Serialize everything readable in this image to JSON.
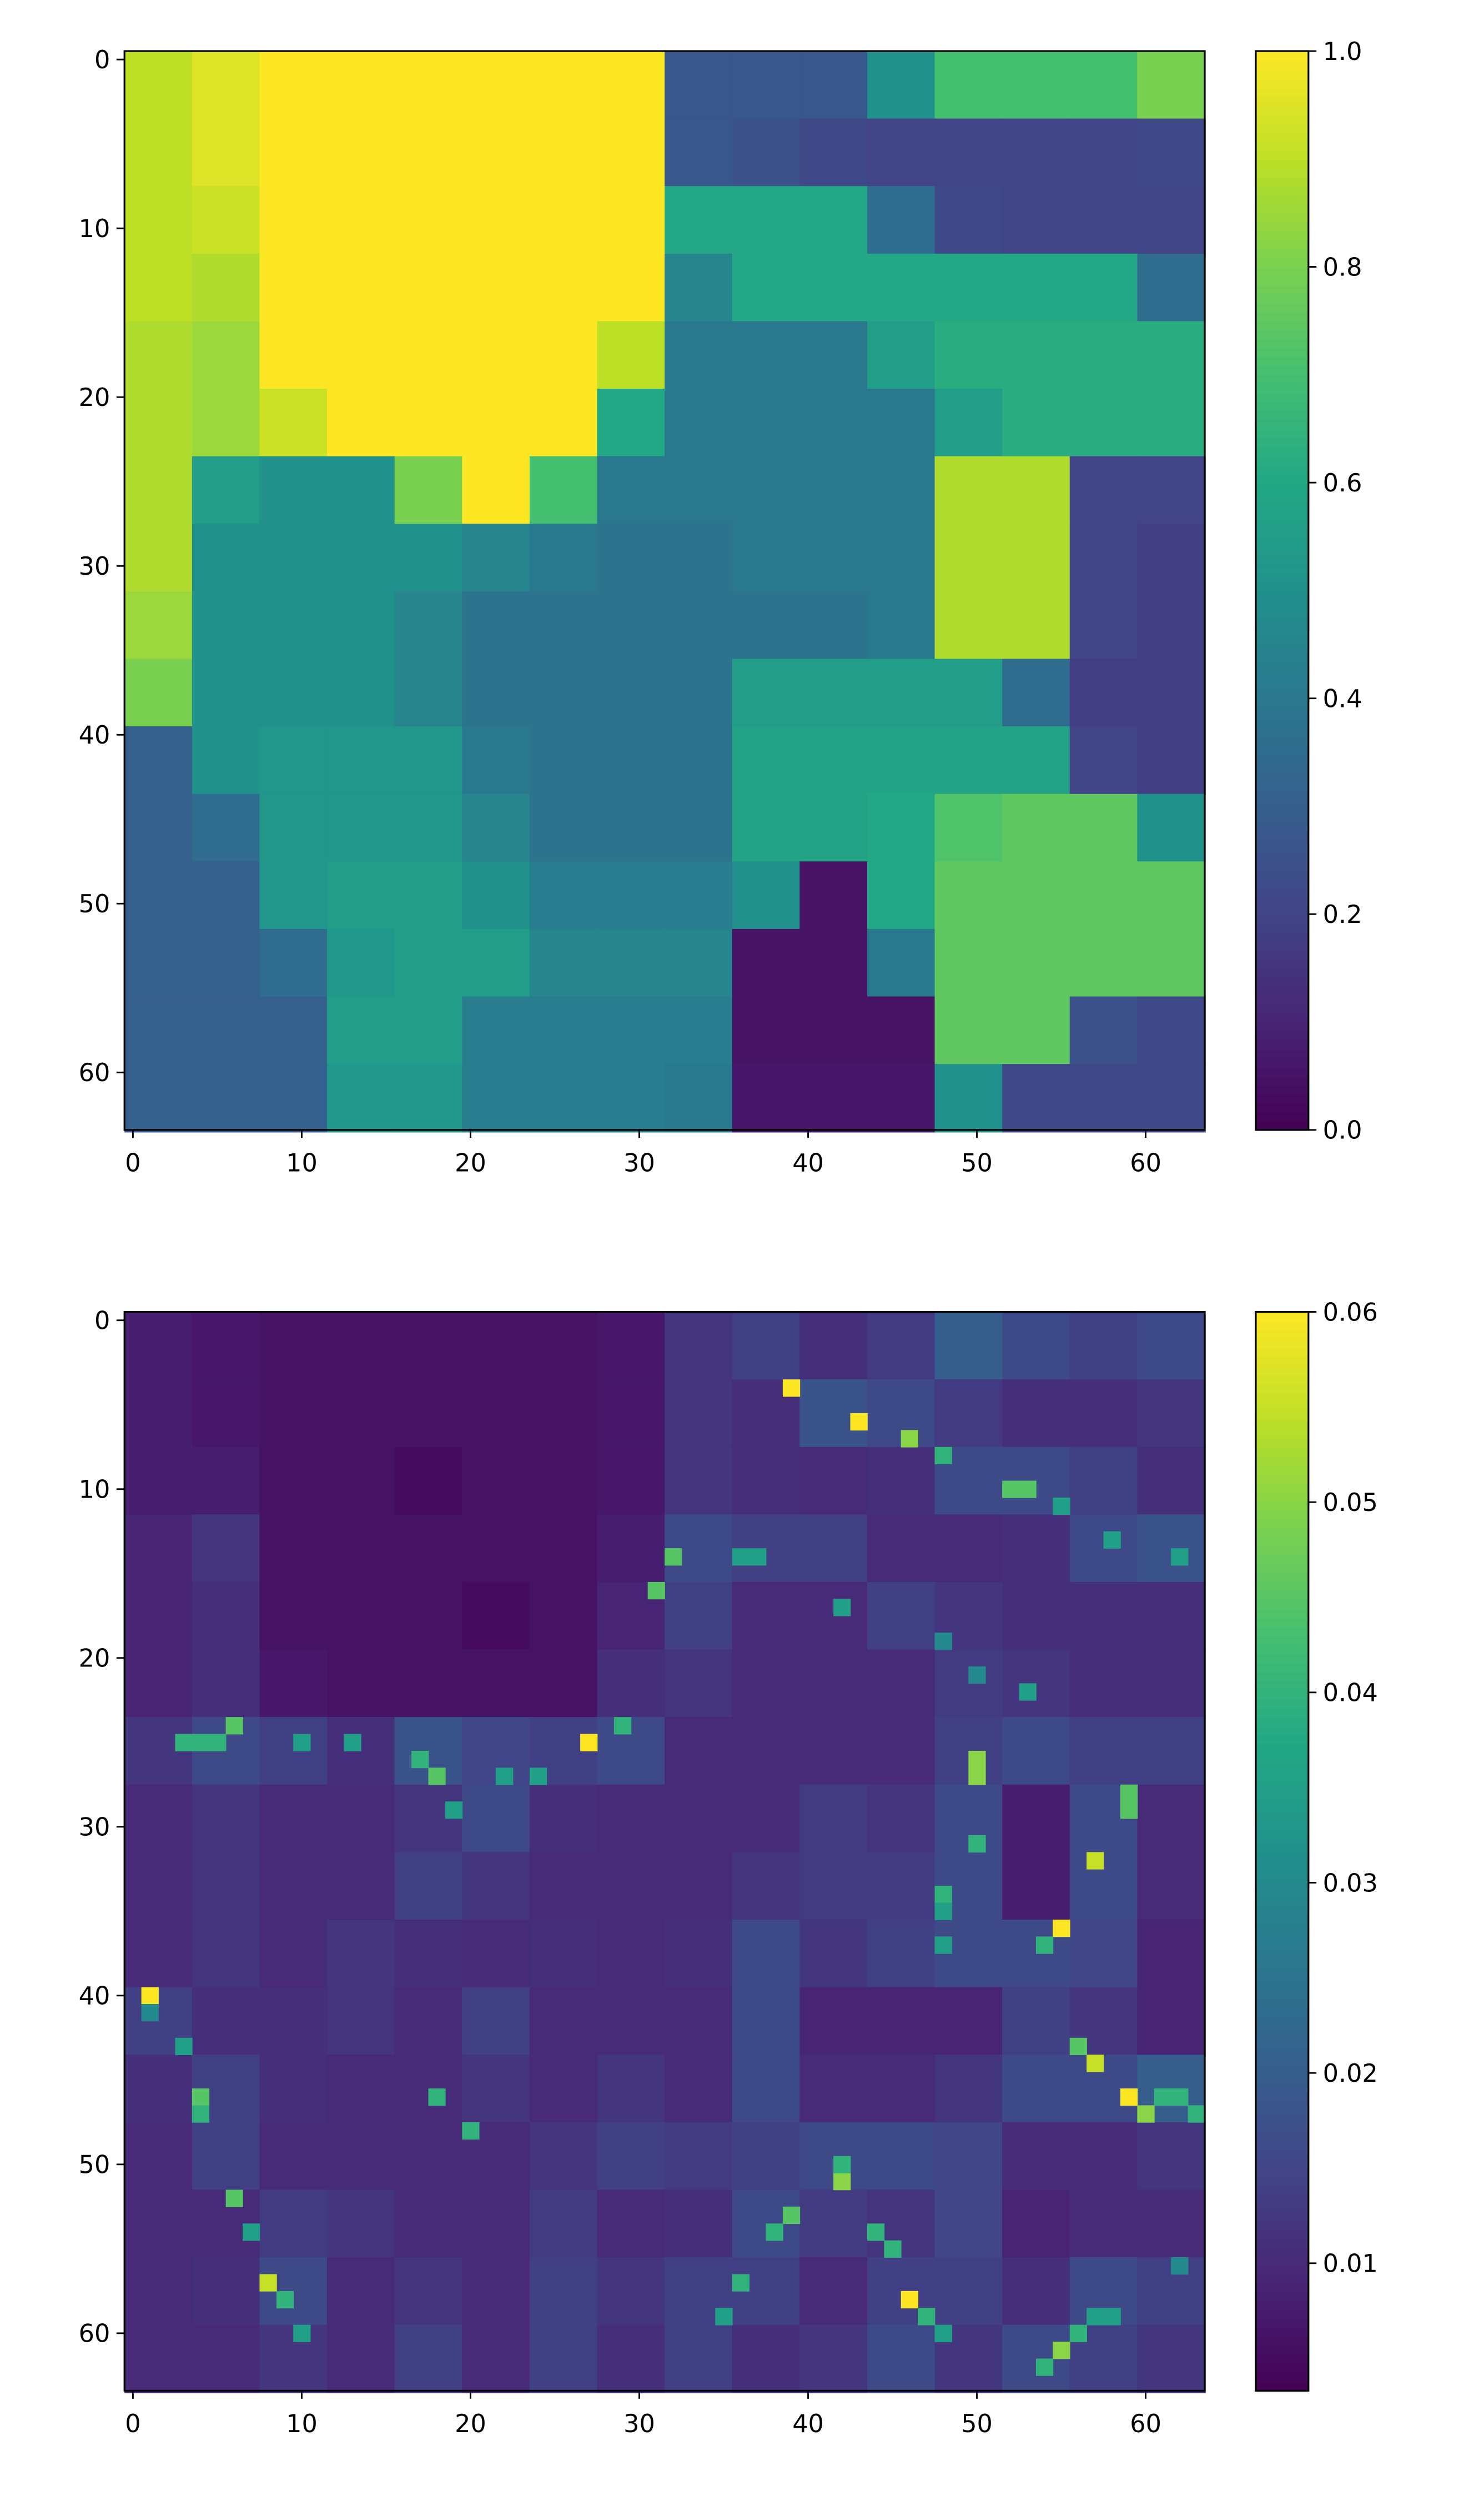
{
  "chart_data": [
    {
      "type": "heatmap",
      "title": "",
      "xlabel": "",
      "ylabel": "",
      "grid_size": [
        64,
        64
      ],
      "block_size": 4,
      "note_values": "16x16 block-averaged approximation of the 64x64 image, rows top to bottom",
      "xlim": [
        -0.5,
        63.5
      ],
      "ylim": [
        63.5,
        -0.5
      ],
      "xticks": [
        "0",
        "10",
        "20",
        "30",
        "40",
        "50",
        "60"
      ],
      "yticks": [
        "0",
        "10",
        "20",
        "30",
        "40",
        "50",
        "60"
      ],
      "colormap": "viridis",
      "vmin": 0.0,
      "vmax": 1.0,
      "colorbar_ticks": [
        "0.0",
        "0.2",
        "0.4",
        "0.6",
        "0.8",
        "1.0"
      ],
      "values": [
        [
          0.9,
          0.95,
          1,
          1,
          1,
          1,
          1,
          1,
          0.27,
          0.27,
          0.27,
          0.5,
          0.7,
          0.7,
          0.7,
          0.8
        ],
        [
          0.9,
          0.95,
          1,
          1,
          1,
          1,
          1,
          1,
          0.27,
          0.25,
          0.22,
          0.2,
          0.2,
          0.2,
          0.2,
          0.22
        ],
        [
          0.9,
          0.92,
          1,
          1,
          1,
          1,
          1,
          1,
          0.6,
          0.6,
          0.6,
          0.35,
          0.22,
          0.2,
          0.2,
          0.2
        ],
        [
          0.9,
          0.88,
          1,
          1,
          1,
          1,
          1,
          1,
          0.45,
          0.6,
          0.6,
          0.6,
          0.6,
          0.6,
          0.6,
          0.35
        ],
        [
          0.88,
          0.85,
          1,
          1,
          1,
          1,
          1,
          0.9,
          0.4,
          0.4,
          0.4,
          0.55,
          0.62,
          0.62,
          0.62,
          0.62
        ],
        [
          0.88,
          0.85,
          0.92,
          1,
          1,
          1,
          1,
          0.6,
          0.4,
          0.4,
          0.4,
          0.4,
          0.55,
          0.62,
          0.62,
          0.62
        ],
        [
          0.88,
          0.55,
          0.5,
          0.5,
          0.8,
          1,
          0.7,
          0.4,
          0.4,
          0.4,
          0.4,
          0.4,
          0.88,
          0.88,
          0.2,
          0.2
        ],
        [
          0.88,
          0.5,
          0.5,
          0.5,
          0.5,
          0.45,
          0.4,
          0.38,
          0.38,
          0.4,
          0.4,
          0.4,
          0.88,
          0.88,
          0.2,
          0.18
        ],
        [
          0.85,
          0.5,
          0.5,
          0.5,
          0.45,
          0.38,
          0.38,
          0.38,
          0.38,
          0.38,
          0.38,
          0.4,
          0.88,
          0.88,
          0.2,
          0.18
        ],
        [
          0.8,
          0.5,
          0.5,
          0.5,
          0.45,
          0.38,
          0.38,
          0.38,
          0.38,
          0.55,
          0.55,
          0.55,
          0.55,
          0.35,
          0.18,
          0.18
        ],
        [
          0.3,
          0.5,
          0.52,
          0.52,
          0.52,
          0.4,
          0.38,
          0.38,
          0.38,
          0.58,
          0.58,
          0.58,
          0.58,
          0.58,
          0.2,
          0.18
        ],
        [
          0.3,
          0.35,
          0.52,
          0.52,
          0.52,
          0.45,
          0.38,
          0.38,
          0.38,
          0.58,
          0.58,
          0.6,
          0.72,
          0.75,
          0.75,
          0.5
        ],
        [
          0.3,
          0.3,
          0.52,
          0.55,
          0.55,
          0.5,
          0.42,
          0.42,
          0.42,
          0.5,
          0.05,
          0.6,
          0.75,
          0.75,
          0.75,
          0.75
        ],
        [
          0.3,
          0.3,
          0.35,
          0.52,
          0.55,
          0.55,
          0.45,
          0.45,
          0.45,
          0.05,
          0.05,
          0.4,
          0.75,
          0.75,
          0.75,
          0.75
        ],
        [
          0.3,
          0.3,
          0.3,
          0.55,
          0.55,
          0.42,
          0.42,
          0.42,
          0.42,
          0.05,
          0.05,
          0.05,
          0.75,
          0.75,
          0.25,
          0.22
        ],
        [
          0.3,
          0.3,
          0.3,
          0.52,
          0.52,
          0.42,
          0.42,
          0.42,
          0.4,
          0.06,
          0.06,
          0.06,
          0.5,
          0.22,
          0.22,
          0.22
        ]
      ]
    },
    {
      "type": "heatmap",
      "title": "",
      "xlabel": "",
      "ylabel": "",
      "grid_size": [
        64,
        64
      ],
      "block_size": 4,
      "note_values": "16x16 block-averaged approximation of the 64x64 image background; bright boundary pixels listed in hotspots as [x, y, value]",
      "xlim": [
        -0.5,
        63.5
      ],
      "ylim": [
        63.5,
        -0.5
      ],
      "xticks": [
        "0",
        "10",
        "20",
        "30",
        "40",
        "50",
        "60"
      ],
      "yticks": [
        "0",
        "10",
        "20",
        "30",
        "40",
        "50",
        "60"
      ],
      "colormap": "viridis",
      "vmin": 0.0033,
      "vmax": 0.06,
      "colorbar_ticks": [
        "0.01",
        "0.02",
        "0.03",
        "0.04",
        "0.05",
        "0.06"
      ],
      "colorbar_tick_values": [
        0.01,
        0.02,
        0.03,
        0.04,
        0.05,
        0.06
      ],
      "values": [
        [
          0.008,
          0.007,
          0.006,
          0.006,
          0.006,
          0.006,
          0.006,
          0.007,
          0.012,
          0.014,
          0.011,
          0.013,
          0.02,
          0.016,
          0.014,
          0.016
        ],
        [
          0.008,
          0.007,
          0.006,
          0.006,
          0.006,
          0.006,
          0.006,
          0.007,
          0.012,
          0.011,
          0.018,
          0.016,
          0.013,
          0.011,
          0.011,
          0.012
        ],
        [
          0.008,
          0.008,
          0.006,
          0.006,
          0.005,
          0.006,
          0.006,
          0.007,
          0.012,
          0.011,
          0.01,
          0.011,
          0.016,
          0.016,
          0.014,
          0.011
        ],
        [
          0.009,
          0.012,
          0.006,
          0.006,
          0.006,
          0.006,
          0.006,
          0.008,
          0.016,
          0.014,
          0.014,
          0.01,
          0.01,
          0.011,
          0.016,
          0.018
        ],
        [
          0.009,
          0.011,
          0.006,
          0.006,
          0.006,
          0.005,
          0.006,
          0.009,
          0.014,
          0.01,
          0.01,
          0.014,
          0.012,
          0.011,
          0.011,
          0.011
        ],
        [
          0.009,
          0.011,
          0.007,
          0.006,
          0.006,
          0.006,
          0.006,
          0.011,
          0.012,
          0.01,
          0.01,
          0.01,
          0.013,
          0.012,
          0.011,
          0.011
        ],
        [
          0.012,
          0.016,
          0.014,
          0.011,
          0.018,
          0.015,
          0.014,
          0.016,
          0.01,
          0.01,
          0.01,
          0.01,
          0.014,
          0.016,
          0.014,
          0.014
        ],
        [
          0.01,
          0.012,
          0.01,
          0.01,
          0.012,
          0.016,
          0.011,
          0.01,
          0.01,
          0.01,
          0.013,
          0.012,
          0.016,
          0.008,
          0.016,
          0.01
        ],
        [
          0.01,
          0.012,
          0.01,
          0.01,
          0.014,
          0.012,
          0.01,
          0.01,
          0.01,
          0.012,
          0.013,
          0.013,
          0.016,
          0.008,
          0.016,
          0.01
        ],
        [
          0.01,
          0.012,
          0.01,
          0.012,
          0.011,
          0.01,
          0.011,
          0.01,
          0.011,
          0.016,
          0.012,
          0.014,
          0.016,
          0.016,
          0.015,
          0.009
        ],
        [
          0.014,
          0.011,
          0.011,
          0.012,
          0.01,
          0.014,
          0.01,
          0.01,
          0.01,
          0.016,
          0.009,
          0.009,
          0.009,
          0.014,
          0.012,
          0.009
        ],
        [
          0.011,
          0.014,
          0.011,
          0.01,
          0.01,
          0.012,
          0.01,
          0.012,
          0.01,
          0.016,
          0.01,
          0.01,
          0.012,
          0.016,
          0.016,
          0.02
        ],
        [
          0.01,
          0.014,
          0.01,
          0.01,
          0.01,
          0.01,
          0.012,
          0.014,
          0.013,
          0.014,
          0.016,
          0.016,
          0.015,
          0.01,
          0.01,
          0.012
        ],
        [
          0.01,
          0.01,
          0.013,
          0.012,
          0.01,
          0.01,
          0.013,
          0.01,
          0.011,
          0.016,
          0.013,
          0.012,
          0.015,
          0.009,
          0.01,
          0.01
        ],
        [
          0.01,
          0.011,
          0.016,
          0.01,
          0.012,
          0.01,
          0.014,
          0.012,
          0.014,
          0.014,
          0.01,
          0.014,
          0.014,
          0.011,
          0.016,
          0.014
        ],
        [
          0.01,
          0.01,
          0.012,
          0.01,
          0.014,
          0.01,
          0.014,
          0.011,
          0.014,
          0.011,
          0.012,
          0.016,
          0.012,
          0.016,
          0.014,
          0.012
        ]
      ],
      "hotspots": [
        [
          39,
          4,
          0.06
        ],
        [
          43,
          6,
          0.06
        ],
        [
          46,
          7,
          0.05
        ],
        [
          48,
          8,
          0.04
        ],
        [
          52,
          10,
          0.045
        ],
        [
          53,
          10,
          0.045
        ],
        [
          55,
          11,
          0.035
        ],
        [
          58,
          13,
          0.035
        ],
        [
          62,
          14,
          0.035
        ],
        [
          32,
          14,
          0.045
        ],
        [
          31,
          16,
          0.045
        ],
        [
          36,
          14,
          0.035
        ],
        [
          37,
          14,
          0.035
        ],
        [
          42,
          17,
          0.035
        ],
        [
          48,
          19,
          0.03
        ],
        [
          50,
          21,
          0.03
        ],
        [
          53,
          22,
          0.035
        ],
        [
          27,
          25,
          0.06
        ],
        [
          29,
          24,
          0.04
        ],
        [
          18,
          27,
          0.045
        ],
        [
          17,
          26,
          0.04
        ],
        [
          19,
          29,
          0.035
        ],
        [
          6,
          24,
          0.045
        ],
        [
          3,
          25,
          0.04
        ],
        [
          4,
          25,
          0.04
        ],
        [
          5,
          25,
          0.04
        ],
        [
          10,
          25,
          0.035
        ],
        [
          13,
          25,
          0.035
        ],
        [
          22,
          27,
          0.035
        ],
        [
          24,
          27,
          0.035
        ],
        [
          50,
          26,
          0.05
        ],
        [
          50,
          27,
          0.05
        ],
        [
          50,
          31,
          0.04
        ],
        [
          48,
          34,
          0.04
        ],
        [
          48,
          35,
          0.035
        ],
        [
          48,
          37,
          0.035
        ],
        [
          57,
          32,
          0.055
        ],
        [
          59,
          29,
          0.045
        ],
        [
          59,
          28,
          0.045
        ],
        [
          55,
          36,
          0.06
        ],
        [
          54,
          37,
          0.04
        ],
        [
          1,
          40,
          0.06
        ],
        [
          1,
          41,
          0.03
        ],
        [
          56,
          43,
          0.045
        ],
        [
          57,
          44,
          0.055
        ],
        [
          59,
          46,
          0.06
        ],
        [
          60,
          47,
          0.05
        ],
        [
          61,
          46,
          0.04
        ],
        [
          62,
          46,
          0.04
        ],
        [
          63,
          47,
          0.04
        ],
        [
          3,
          43,
          0.035
        ],
        [
          4,
          46,
          0.045
        ],
        [
          4,
          47,
          0.04
        ],
        [
          6,
          52,
          0.045
        ],
        [
          7,
          54,
          0.035
        ],
        [
          8,
          57,
          0.055
        ],
        [
          9,
          58,
          0.04
        ],
        [
          10,
          60,
          0.035
        ],
        [
          18,
          46,
          0.04
        ],
        [
          20,
          48,
          0.04
        ],
        [
          42,
          51,
          0.05
        ],
        [
          42,
          50,
          0.04
        ],
        [
          39,
          53,
          0.045
        ],
        [
          38,
          54,
          0.04
        ],
        [
          36,
          57,
          0.04
        ],
        [
          35,
          59,
          0.035
        ],
        [
          44,
          54,
          0.04
        ],
        [
          45,
          55,
          0.04
        ],
        [
          46,
          58,
          0.06
        ],
        [
          47,
          59,
          0.04
        ],
        [
          48,
          60,
          0.035
        ],
        [
          55,
          61,
          0.05
        ],
        [
          56,
          60,
          0.04
        ],
        [
          57,
          59,
          0.035
        ],
        [
          58,
          59,
          0.035
        ],
        [
          54,
          62,
          0.04
        ],
        [
          62,
          56,
          0.03
        ]
      ]
    }
  ]
}
